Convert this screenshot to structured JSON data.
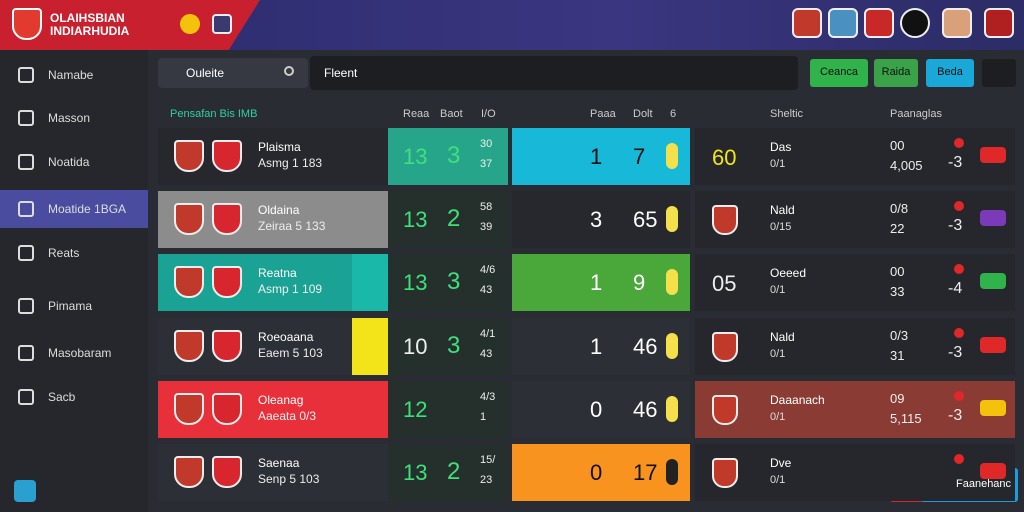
{
  "header": {
    "title": [
      "OLAIHSBIAN",
      "INDIARHUDIA"
    ]
  },
  "sidebar": [
    "Namabe",
    "Masson",
    "Noatida",
    "Moatide 1BGA",
    "Reats",
    "Pimama",
    "Masobaram",
    "Sacb"
  ],
  "toolbar": {
    "search": "Ouleite",
    "filter": "Fleent",
    "buttons": [
      "Ceanca",
      "Raida",
      "Beda"
    ]
  },
  "table": {
    "columns": [
      "Pensafan Bis IMB",
      "Reaa",
      "Baot",
      "I/O",
      "Paaa",
      "Dolt",
      "6",
      "Sheltic",
      "Paanaglas"
    ],
    "rows": [
      {
        "name": "Plaisma",
        "sub": "Asmg 1 183",
        "score": "13",
        "goal": "3",
        "stat1": "30",
        "stat2": "37",
        "mid1": "1",
        "mid2": "7",
        "lead": "60",
        "club": "Das",
        "club_sub": "0/1",
        "r1": "00",
        "r2": "4,005",
        "r3": "-3"
      },
      {
        "name": "Oldaina",
        "sub": "Zeiraa 5 133",
        "score": "13",
        "goal": "2",
        "stat1": "58",
        "stat2": "39",
        "mid1": "3",
        "mid2": "65",
        "lead": "",
        "club": "Nald",
        "club_sub": "0/15",
        "r1": "0/8",
        "r2": "22",
        "r3": "-3"
      },
      {
        "name": "Reatna",
        "sub": "Asmp 1 109",
        "score": "13",
        "goal": "3",
        "stat1": "4/6",
        "stat2": "43",
        "mid1": "1",
        "mid2": "9",
        "lead": "05",
        "club": "Oeeed",
        "club_sub": "0/1",
        "r1": "00",
        "r2": "33",
        "r3": "-4"
      },
      {
        "name": "Roeoaana",
        "sub": "Eaem 5 103",
        "score": "10",
        "goal": "3",
        "stat1": "4/1",
        "stat2": "43",
        "mid1": "1",
        "mid2": "46",
        "lead": "",
        "club": "Nald",
        "club_sub": "0/1",
        "r1": "0/3",
        "r2": "31",
        "r3": "-3"
      },
      {
        "name": "Oleanag",
        "sub": "Aaeata 0/3",
        "score": "12",
        "goal": "",
        "stat1": "4/3",
        "stat2": "1",
        "mid1": "0",
        "mid2": "46",
        "lead": "",
        "club": "Daaanach",
        "club_sub": "0/1",
        "r1": "09",
        "r2": "5,115",
        "r3": "-3"
      },
      {
        "name": "Saenaa",
        "sub": "Senp 5 103",
        "score": "13",
        "goal": "2",
        "stat1": "15/",
        "stat2": "23",
        "mid1": "0",
        "mid2": "17",
        "lead": "",
        "club": "Dve",
        "club_sub": "0/1",
        "r1": "",
        "r2": "",
        "r3": ""
      }
    ]
  },
  "action": "Faanehanc"
}
